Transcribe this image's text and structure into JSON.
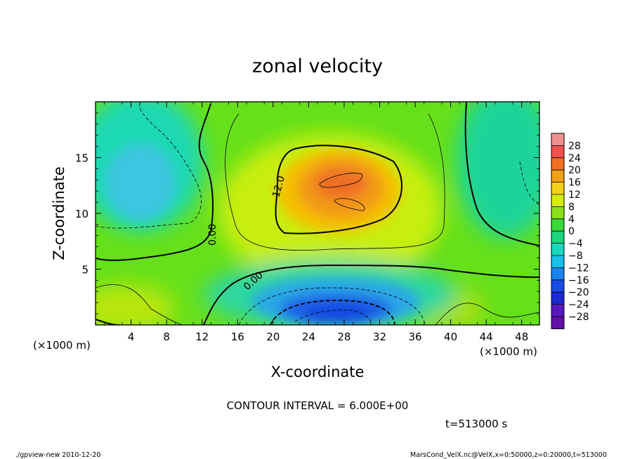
{
  "chart_data": {
    "type": "contour",
    "title": "zonal velocity",
    "xlabel": "X-coordinate",
    "ylabel": "Z-coordinate",
    "x_unit_label": "(×1000 m)",
    "xlim": [
      0,
      50
    ],
    "ylim": [
      0,
      20
    ],
    "x_ticks": [
      4,
      8,
      12,
      16,
      20,
      24,
      28,
      32,
      36,
      40,
      44,
      48
    ],
    "y_ticks": [
      5,
      10,
      15
    ],
    "contour_interval_text": "CONTOUR INTERVAL = 6.000E+00",
    "contour_labels": [
      "0.00",
      "12.0",
      "0.00"
    ],
    "colorbar": {
      "levels": [
        -28,
        -24,
        -20,
        -16,
        -12,
        -8,
        -4,
        0,
        4,
        8,
        12,
        16,
        20,
        24,
        28
      ],
      "tick_labels": [
        "28",
        "24",
        "20",
        "16",
        "12",
        "8",
        "4",
        "0",
        "−4",
        "−8",
        "−12",
        "−16",
        "−20",
        "−24",
        "−28"
      ]
    },
    "field_features": [
      {
        "x": 27,
        "z": 12,
        "value": 22
      },
      {
        "x": 28,
        "z": 1.2,
        "value": -20
      },
      {
        "x": 7,
        "z": 12.5,
        "value": -10
      }
    ],
    "time_text": "t=513000 s"
  },
  "footer": {
    "left": "./gpview-new  2010-12-20",
    "right": "MarsCond_VelX.nc@VelX,x=0:50000,z=0:20000,t=513000"
  }
}
